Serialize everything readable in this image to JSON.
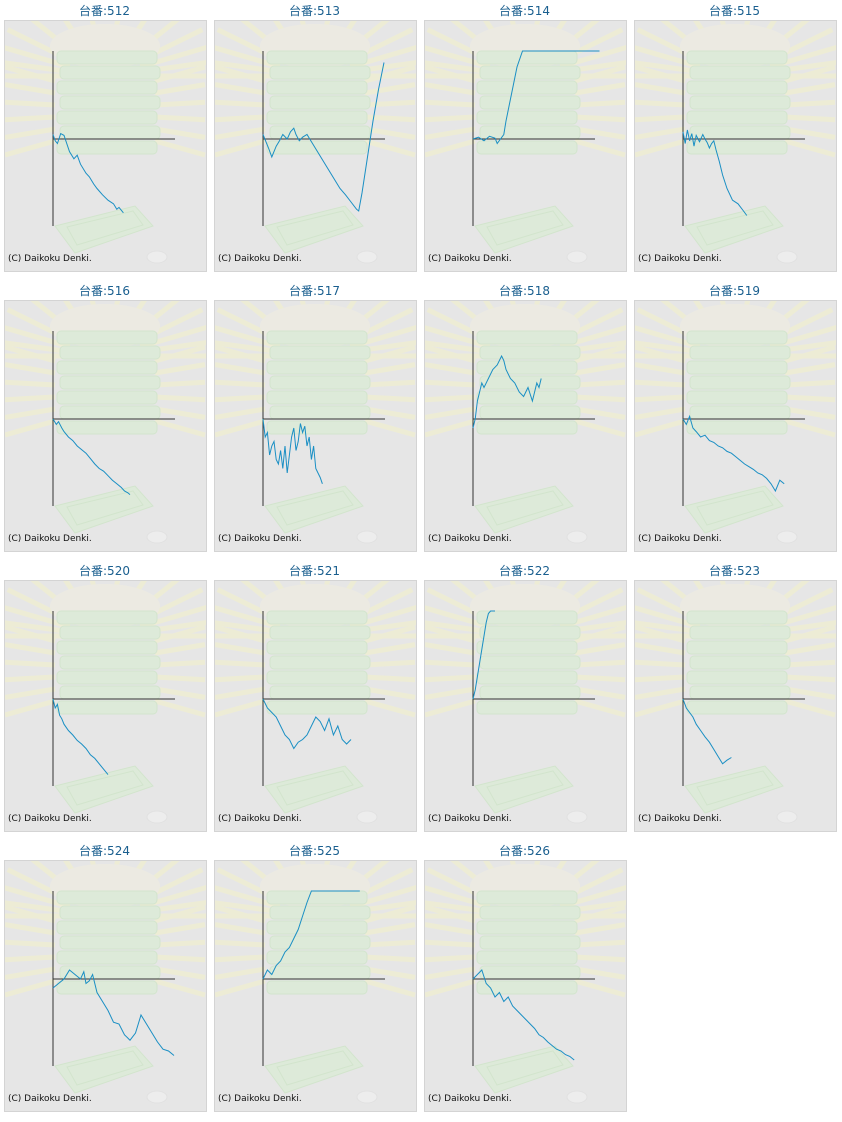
{
  "page": {
    "copyright": "(C) Daikoku Denki.",
    "line_color": "#1a8fc4",
    "axis_color": "#333333",
    "panel_bg": "#e6e6e6"
  },
  "chart_data": [
    {
      "type": "line",
      "label": "台番:512",
      "machine": "512",
      "x": [
        0,
        2,
        4,
        7,
        10,
        15,
        19,
        22,
        25,
        30,
        33,
        37,
        40,
        45,
        50,
        55,
        58,
        60,
        64
      ],
      "values": [
        5,
        -2,
        -5,
        6,
        4,
        -14,
        -22,
        -18,
        -28,
        -38,
        -42,
        -50,
        -55,
        -62,
        -68,
        -72,
        -78,
        -76,
        -82
      ]
    },
    {
      "type": "line",
      "label": "台番:513",
      "machine": "513",
      "x": [
        0,
        5,
        8,
        12,
        15,
        18,
        22,
        25,
        28,
        30,
        33,
        36,
        40,
        45,
        50,
        55,
        60,
        65,
        70,
        75,
        80,
        85,
        87,
        90,
        95,
        100,
        105,
        110
      ],
      "values": [
        5,
        -10,
        -20,
        -8,
        -2,
        5,
        0,
        8,
        12,
        5,
        -2,
        2,
        5,
        -5,
        -15,
        -25,
        -35,
        -45,
        -55,
        -62,
        -70,
        -78,
        -80,
        -60,
        -20,
        20,
        55,
        85
      ]
    },
    {
      "type": "line",
      "label": "台番:514",
      "machine": "514",
      "x": [
        0,
        5,
        10,
        15,
        20,
        22,
        25,
        28,
        30,
        35,
        40,
        45,
        50,
        55,
        60,
        65,
        70,
        75,
        80,
        85,
        90,
        95,
        100,
        105,
        110,
        115
      ],
      "values": [
        0,
        2,
        -2,
        3,
        1,
        -5,
        0,
        5,
        20,
        50,
        80,
        110,
        140,
        160,
        150,
        145,
        140,
        130,
        138,
        125,
        130,
        118,
        122,
        110,
        115,
        105
      ]
    },
    {
      "type": "line",
      "label": "台番:515",
      "machine": "515",
      "x": [
        0,
        2,
        4,
        6,
        8,
        10,
        12,
        15,
        18,
        20,
        22,
        24,
        26,
        28,
        30,
        33,
        36,
        40,
        45,
        50,
        55,
        58
      ],
      "values": [
        8,
        -5,
        10,
        -2,
        6,
        -8,
        4,
        -3,
        5,
        0,
        -4,
        -10,
        -5,
        -2,
        -12,
        -25,
        -40,
        -55,
        -68,
        -72,
        -80,
        -85
      ]
    },
    {
      "type": "line",
      "label": "台番:516",
      "machine": "516",
      "x": [
        0,
        3,
        5,
        8,
        10,
        14,
        18,
        22,
        26,
        30,
        34,
        38,
        42,
        46,
        50,
        54,
        58,
        62,
        65,
        68,
        70
      ],
      "values": [
        0,
        -6,
        -3,
        -10,
        -14,
        -20,
        -24,
        -30,
        -34,
        -38,
        -44,
        -50,
        -55,
        -58,
        -63,
        -68,
        -72,
        -76,
        -80,
        -82,
        -84
      ]
    },
    {
      "type": "line",
      "label": "台番:517",
      "machine": "517",
      "x": [
        0,
        2,
        4,
        6,
        8,
        10,
        12,
        14,
        16,
        18,
        20,
        22,
        24,
        26,
        28,
        30,
        32,
        34,
        36,
        38,
        40,
        42,
        44,
        46,
        48,
        50,
        52,
        54
      ],
      "values": [
        0,
        -20,
        -15,
        -40,
        -30,
        -25,
        -45,
        -50,
        -35,
        -55,
        -30,
        -60,
        -40,
        -20,
        -10,
        -35,
        -25,
        -5,
        -15,
        -8,
        -30,
        -20,
        -45,
        -30,
        -55,
        -60,
        -65,
        -72
      ]
    },
    {
      "type": "line",
      "label": "台番:518",
      "machine": "518",
      "x": [
        0,
        2,
        4,
        6,
        8,
        10,
        14,
        18,
        22,
        26,
        28,
        30,
        34,
        38,
        42,
        46,
        50,
        54,
        58,
        60,
        62
      ],
      "values": [
        -10,
        0,
        20,
        30,
        40,
        35,
        45,
        55,
        60,
        70,
        65,
        55,
        45,
        40,
        30,
        25,
        35,
        20,
        40,
        35,
        45
      ]
    },
    {
      "type": "line",
      "label": "台番:519",
      "machine": "519",
      "x": [
        0,
        3,
        6,
        9,
        12,
        16,
        20,
        24,
        28,
        32,
        36,
        40,
        44,
        48,
        52,
        56,
        60,
        64,
        68,
        72,
        76,
        80,
        84,
        88,
        92
      ],
      "values": [
        0,
        -6,
        3,
        -10,
        -14,
        -20,
        -18,
        -24,
        -26,
        -30,
        -32,
        -36,
        -38,
        -42,
        -46,
        -50,
        -53,
        -56,
        -60,
        -62,
        -66,
        -72,
        -80,
        -68,
        -72
      ]
    },
    {
      "type": "line",
      "label": "台番:520",
      "machine": "520",
      "x": [
        0,
        2,
        4,
        6,
        8,
        10,
        14,
        18,
        22,
        26,
        30,
        34,
        38,
        42,
        46,
        50
      ],
      "values": [
        0,
        -10,
        -6,
        -18,
        -22,
        -28,
        -35,
        -40,
        -46,
        -50,
        -55,
        -62,
        -66,
        -72,
        -78,
        -84
      ]
    },
    {
      "type": "line",
      "label": "台番:521",
      "machine": "521",
      "x": [
        0,
        4,
        8,
        12,
        16,
        20,
        24,
        28,
        32,
        36,
        40,
        44,
        48,
        52,
        56,
        60,
        64,
        68,
        72,
        76,
        80
      ],
      "values": [
        0,
        -10,
        -15,
        -20,
        -30,
        -40,
        -45,
        -55,
        -48,
        -45,
        -40,
        -30,
        -20,
        -25,
        -35,
        -22,
        -40,
        -30,
        -45,
        -50,
        -45
      ]
    },
    {
      "type": "line",
      "label": "台番:522",
      "machine": "522",
      "x": [
        0,
        2,
        4,
        6,
        8,
        10,
        12,
        14,
        16,
        18,
        20
      ],
      "values": [
        0,
        10,
        25,
        40,
        55,
        70,
        85,
        95,
        105,
        115,
        120
      ]
    },
    {
      "type": "line",
      "label": "台番:523",
      "machine": "523",
      "x": [
        0,
        3,
        6,
        9,
        12,
        16,
        20,
        24,
        28,
        32,
        36,
        40,
        44
      ],
      "values": [
        0,
        -10,
        -15,
        -20,
        -28,
        -35,
        -42,
        -48,
        -56,
        -64,
        -72,
        -68,
        -65
      ]
    },
    {
      "type": "line",
      "label": "台番:524",
      "machine": "524",
      "x": [
        0,
        5,
        10,
        15,
        20,
        25,
        28,
        30,
        33,
        36,
        40,
        45,
        50,
        55,
        60,
        65,
        70,
        75,
        80,
        85,
        90,
        95,
        100,
        105,
        110
      ],
      "values": [
        -10,
        -5,
        0,
        10,
        5,
        0,
        8,
        -5,
        -2,
        5,
        -15,
        -25,
        -35,
        -48,
        -50,
        -62,
        -68,
        -60,
        -40,
        -50,
        -60,
        -70,
        -78,
        -80,
        -85
      ]
    },
    {
      "type": "line",
      "label": "台番:525",
      "machine": "525",
      "x": [
        0,
        4,
        8,
        12,
        16,
        20,
        24,
        28,
        32,
        36,
        40,
        44,
        48,
        52,
        56,
        60,
        64,
        68,
        72,
        76,
        80,
        84,
        88
      ],
      "values": [
        0,
        10,
        5,
        15,
        20,
        30,
        35,
        45,
        55,
        70,
        85,
        100,
        115,
        130,
        140,
        135,
        130,
        128,
        126,
        124,
        122,
        120,
        115
      ]
    },
    {
      "type": "line",
      "label": "台番:526",
      "machine": "526",
      "x": [
        0,
        4,
        8,
        12,
        16,
        20,
        24,
        28,
        32,
        36,
        40,
        44,
        48,
        52,
        56,
        60,
        64,
        68,
        72,
        76,
        80,
        84,
        88,
        92
      ],
      "values": [
        0,
        5,
        10,
        -5,
        -10,
        -20,
        -15,
        -25,
        -20,
        -30,
        -35,
        -40,
        -45,
        -50,
        -55,
        -62,
        -65,
        -70,
        -74,
        -78,
        -80,
        -84,
        -86,
        -90
      ]
    }
  ]
}
